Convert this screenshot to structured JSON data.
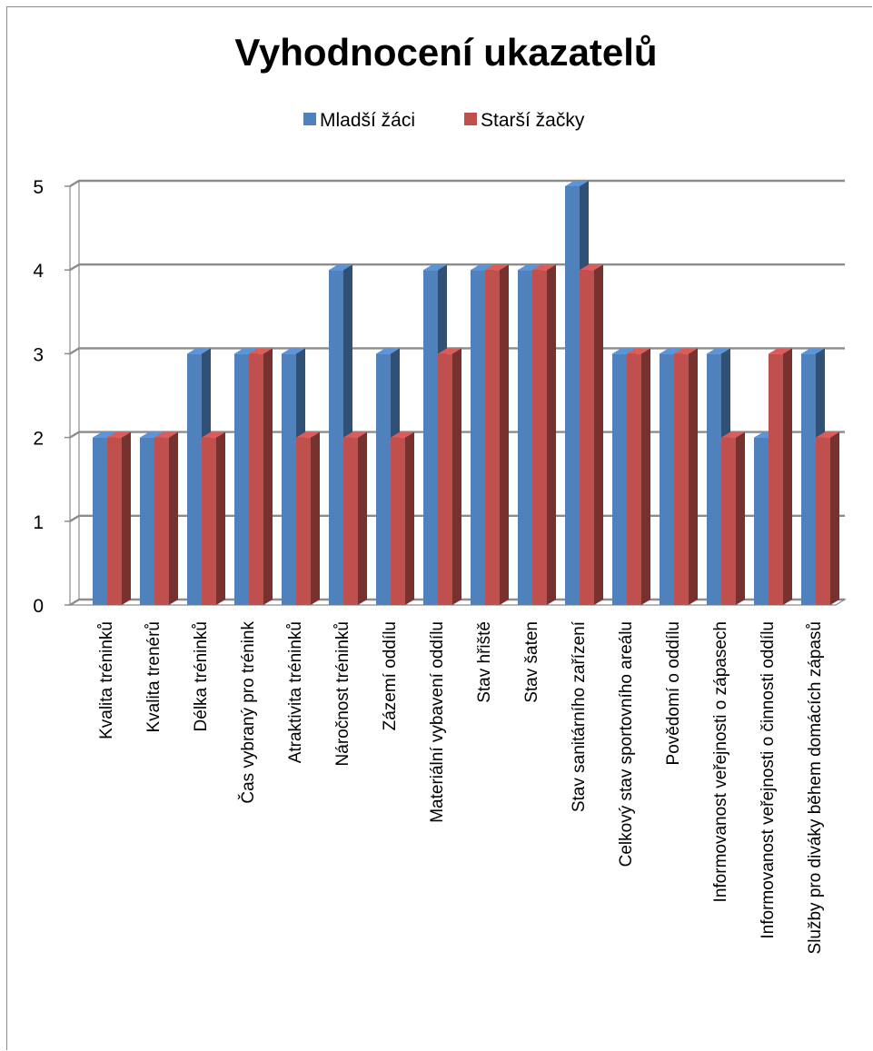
{
  "chart_data": {
    "type": "bar",
    "title": "Vyhodnocení ukazatelů",
    "categories": [
      "Kvalita tréninků",
      "Kvalita trenérů",
      "Délka tréninků",
      "Čas vybraný pro trénink",
      "Atraktivita tréninků",
      "Náročnost tréninků",
      "Zázemí oddílu",
      "Materiální vybavení oddílu",
      "Stav hřiště",
      "Stav šaten",
      "Stav sanitárního zařízení",
      "Celkový stav sportovního areálu",
      "Povědomí o oddílu",
      "Informovanost veřejnosti o zápasech",
      "Informovanost veřejnosti o činnosti oddílu",
      "Služby pro diváky během domácích zápasů"
    ],
    "series": [
      {
        "name": "Mladší žáci",
        "color": "#4f81bd",
        "values": [
          2,
          2,
          3,
          3,
          3,
          4,
          3,
          4,
          4,
          4,
          5,
          3,
          3,
          3,
          2,
          3
        ]
      },
      {
        "name": "Starší žačky",
        "color": "#c0504d",
        "values": [
          2,
          2,
          2,
          3,
          2,
          2,
          2,
          3,
          4,
          4,
          4,
          3,
          3,
          2,
          3,
          2
        ]
      }
    ],
    "ylim": [
      0,
      5
    ],
    "yticks": [
      0,
      1,
      2,
      3,
      4,
      5
    ],
    "grid": true,
    "legend": "top-center",
    "style": "3d-clustered-column"
  }
}
